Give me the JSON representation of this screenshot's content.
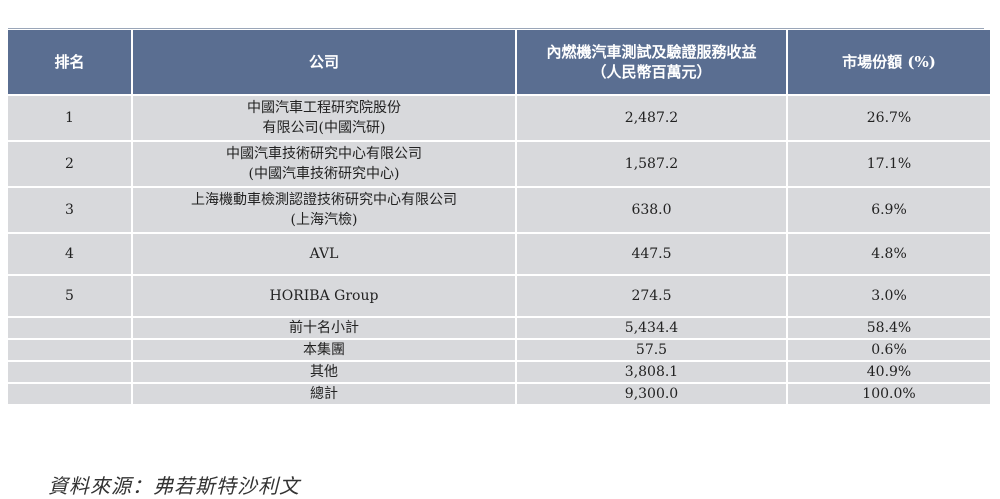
{
  "table": {
    "headers": {
      "rank": "排名",
      "company": "公司",
      "revenue_line1": "內燃機汽車測試及驗證服務收益",
      "revenue_line2": "（人民幣百萬元）",
      "share": "市場份額 (%)"
    },
    "rows": [
      {
        "rank": "1",
        "company_line1": "中國汽車工程研究院股份",
        "company_line2": "有限公司(中國汽研)",
        "revenue": "2,487.2",
        "share": "26.7%"
      },
      {
        "rank": "2",
        "company_line1": "中國汽車技術研究中心有限公司",
        "company_line2": "(中國汽車技術研究中心)",
        "revenue": "1,587.2",
        "share": "17.1%"
      },
      {
        "rank": "3",
        "company_line1": "上海機動車檢測認證技術研究中心有限公司",
        "company_line2": "(上海汽檢)",
        "revenue": "638.0",
        "share": "6.9%"
      },
      {
        "rank": "4",
        "company_line1": "AVL",
        "company_line2": "",
        "revenue": "447.5",
        "share": "4.8%"
      },
      {
        "rank": "5",
        "company_line1": "HORIBA Group",
        "company_line2": "",
        "revenue": "274.5",
        "share": "3.0%"
      }
    ],
    "summary": [
      {
        "label": "前十名小計",
        "revenue": "5,434.4",
        "share": "58.4%"
      },
      {
        "label": "本集團",
        "revenue": "57.5",
        "share": "0.6%"
      },
      {
        "label": "其他",
        "revenue": "3,808.1",
        "share": "40.9%"
      },
      {
        "label": "總計",
        "revenue": "9,300.0",
        "share": "100.0%"
      }
    ]
  },
  "source": "資料來源：弗若斯特沙利文"
}
